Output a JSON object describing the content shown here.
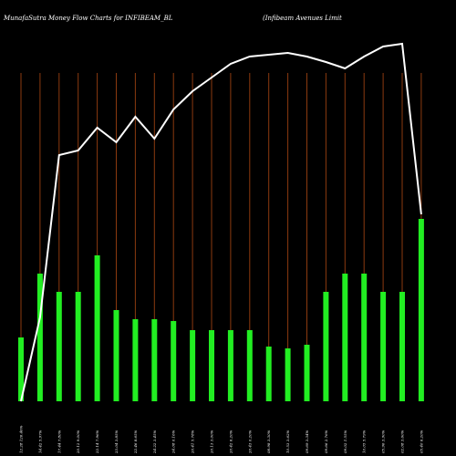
{
  "chart_data": {
    "type": "bar",
    "title": "MunafaSutra  Money Flow  Charts for INFIBEAM_BL",
    "subtitle": "(Infibeam Avenues Limit",
    "categories": [
      "12.28 126.46%",
      "14.42 5.97%",
      "17.44 7.80%",
      "20.12 9.00%",
      "22.14 7.96%",
      "23.04 3.85%",
      "22.46 8.65%",
      "24.22 3.45%",
      "24.08 0.16%",
      "20.41 5.78%",
      "20.13 3.00%",
      "20.42 6.20%",
      "20.43 0.20%",
      "08.98 3.30%",
      "10.53 3.62%",
      "09.69 3.34%",
      "09.66 2.76%",
      "09.02 1.55%",
      "10.05 5.79%",
      "05.96 3.90%",
      "02.08 3.60%",
      "05.40 6.20%"
    ],
    "values": [
      35,
      70,
      60,
      60,
      80,
      50,
      45,
      45,
      44,
      39,
      39,
      39,
      39,
      30,
      29,
      31,
      60,
      70,
      70,
      60,
      60,
      100
    ],
    "price_line": [
      0,
      92,
      270,
      275,
      300,
      284,
      312,
      288,
      320,
      340,
      355,
      370,
      378,
      380,
      382,
      378,
      372,
      365,
      378,
      389,
      392,
      205
    ],
    "bar_color": "#22ee22",
    "line_color": "#ffffff",
    "grid_color": "#8b3a0f",
    "background": "#000000"
  }
}
